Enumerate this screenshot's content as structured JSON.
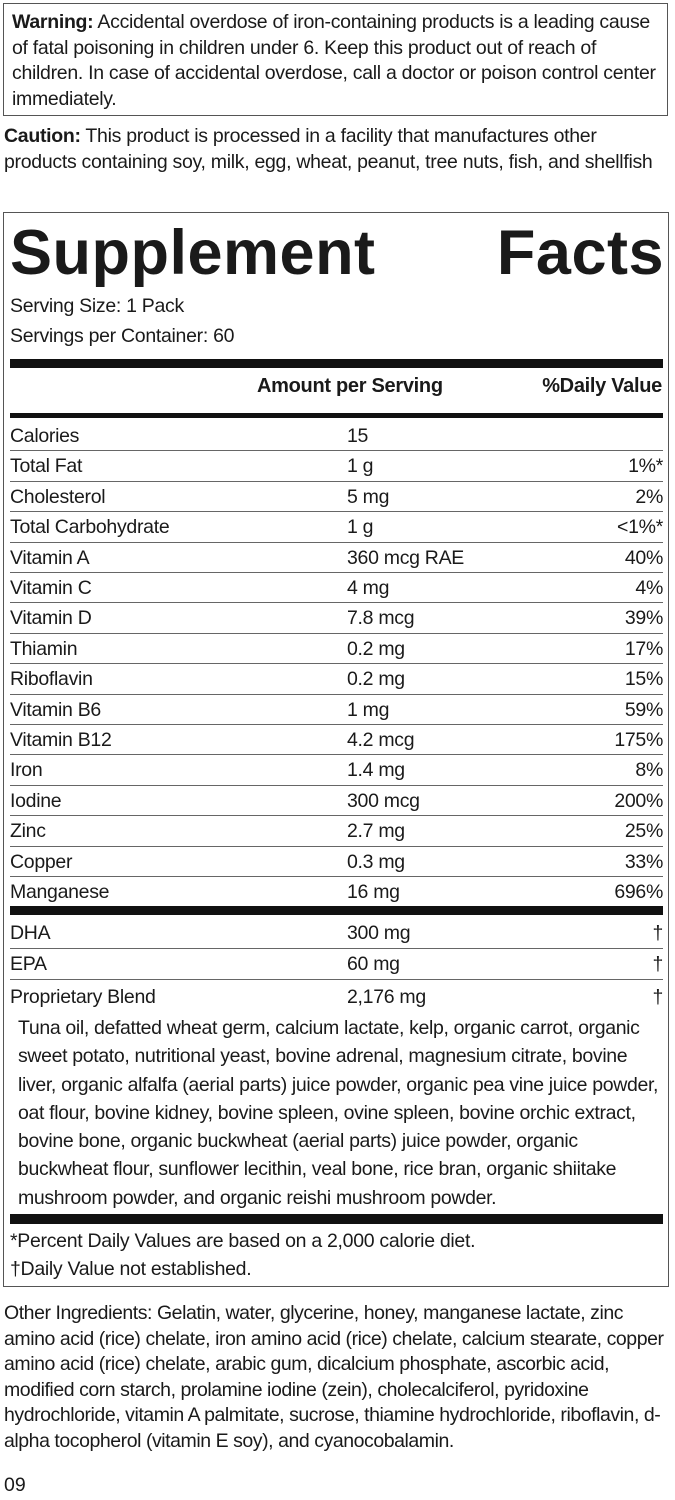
{
  "warning": {
    "label": "Warning:",
    "text": " Accidental overdose of iron-containing products is a leading cause of fatal poisoning in children under 6. Keep this product out of reach of children. In case of accidental overdose, call a doctor or poison control center immediately."
  },
  "caution": {
    "label": "Caution:",
    "text": " This product is processed in a facility that manufactures other products containing soy, milk, egg, wheat, peanut, tree nuts, fish, and shellfish"
  },
  "facts": {
    "title_word1": "Supplement",
    "title_word2": "Facts",
    "serving_size": "Serving Size: 1 Pack",
    "servings_per_container": "Servings per Container: 60",
    "col_amount": "Amount per Serving",
    "col_dv": "%Daily Value",
    "nutrients": [
      {
        "name": "Calories",
        "amount": "15",
        "dv": ""
      },
      {
        "name": "Total Fat",
        "amount": "1 g",
        "dv": "1%*"
      },
      {
        "name": "Cholesterol",
        "amount": "5 mg",
        "dv": "2%"
      },
      {
        "name": "Total Carbohydrate",
        "amount": "1 g",
        "dv": "<1%*"
      },
      {
        "name": "Vitamin A",
        "amount": "360 mcg RAE",
        "dv": "40%"
      },
      {
        "name": "Vitamin C",
        "amount": "4 mg",
        "dv": "4%"
      },
      {
        "name": "Vitamin D",
        "amount": "7.8 mcg",
        "dv": "39%"
      },
      {
        "name": "Thiamin",
        "amount": "0.2 mg",
        "dv": "17%"
      },
      {
        "name": "Riboflavin",
        "amount": "0.2 mg",
        "dv": "15%"
      },
      {
        "name": "Vitamin B6",
        "amount": "1 mg",
        "dv": "59%"
      },
      {
        "name": "Vitamin B12",
        "amount": "4.2 mcg",
        "dv": "175%"
      },
      {
        "name": "Iron",
        "amount": "1.4 mg",
        "dv": "8%"
      },
      {
        "name": "Iodine",
        "amount": "300 mcg",
        "dv": "200%"
      },
      {
        "name": "Zinc",
        "amount": "2.7 mg",
        "dv": "25%"
      },
      {
        "name": "Copper",
        "amount": "0.3 mg",
        "dv": "33%"
      },
      {
        "name": "Manganese",
        "amount": "16 mg",
        "dv": "696%"
      }
    ],
    "other_nutrients": [
      {
        "name": "DHA",
        "amount": "300 mg",
        "dv": "†"
      },
      {
        "name": "EPA",
        "amount": "60 mg",
        "dv": "†"
      },
      {
        "name": "Proprietary Blend",
        "amount": "2,176 mg",
        "dv": "†"
      }
    ],
    "blend_description": "Tuna oil, defatted wheat germ, calcium lactate, kelp, organic carrot, organic sweet potato, nutritional yeast, bovine adrenal, magnesium citrate, bovine liver, organic alfalfa (aerial parts) juice powder, organic pea vine juice powder, oat flour, bovine kidney, bovine spleen, ovine spleen, bovine orchic extract, bovine bone, organic buckwheat (aerial parts) juice powder, organic buckwheat flour, sunflower lecithin, veal bone, rice bran, organic shiitake mushroom powder, and organic reishi mushroom powder.",
    "footnote_percent": "*Percent Daily Values are based on a 2,000 calorie diet.",
    "footnote_dagger": "†Daily Value not established."
  },
  "other_ingredients": "Other Ingredients: Gelatin, water, glycerine, honey, manganese lactate, zinc amino acid (rice) chelate, iron amino acid (rice) chelate, calcium stearate, copper amino acid (rice) chelate, arabic gum, dicalcium phosphate, ascorbic acid, modified corn starch, prolamine iodine (zein), cholecalciferol, pyridoxine hydrochloride, vitamin A palmitate, sucrose, thiamine hydrochloride, riboflavin, d-alpha tocopherol (vitamin E soy), and cyanocobalamin.",
  "code": "09"
}
